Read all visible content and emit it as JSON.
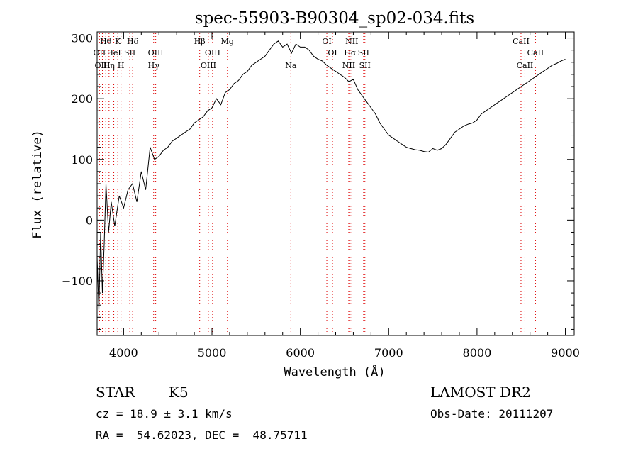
{
  "chart_data": {
    "type": "line",
    "title": "spec-55903-B90304_sp02-034.fits",
    "xlabel": "Wavelength (Å)",
    "ylabel": "Flux (relative)",
    "xlim": [
      3700,
      9100
    ],
    "ylim": [
      -190,
      310
    ],
    "x_ticks": [
      4000,
      5000,
      6000,
      7000,
      8000,
      9000
    ],
    "y_ticks": [
      -100,
      0,
      100,
      200,
      300
    ],
    "x_tick_labels": [
      "4000",
      "5000",
      "6000",
      "7000",
      "8000",
      "9000"
    ],
    "y_tick_labels": [
      "−100",
      "0",
      "100",
      "200",
      "300"
    ],
    "grid": false,
    "line_color": "#000000",
    "marker_color": "#dd0000",
    "series": [
      {
        "x": [
          3700,
          3720,
          3740,
          3760,
          3780,
          3800,
          3830,
          3860,
          3900,
          3950,
          4000,
          4050,
          4100,
          4150,
          4200,
          4250,
          4300,
          4350,
          4400,
          4450,
          4500,
          4550,
          4600,
          4650,
          4700,
          4750,
          4800,
          4850,
          4900,
          4950,
          5000,
          5050,
          5100,
          5150,
          5200,
          5250,
          5300,
          5350,
          5400,
          5450,
          5500,
          5550,
          5600,
          5650,
          5700,
          5750,
          5800,
          5850,
          5900,
          5950,
          6000,
          6050,
          6100,
          6150,
          6200,
          6250,
          6300,
          6350,
          6400,
          6450,
          6500,
          6550,
          6600,
          6650,
          6700,
          6750,
          6800,
          6850,
          6900,
          6950,
          7000,
          7050,
          7100,
          7150,
          7200,
          7250,
          7300,
          7350,
          7400,
          7450,
          7500,
          7550,
          7600,
          7650,
          7700,
          7750,
          7800,
          7850,
          7900,
          7950,
          8000,
          8050,
          8100,
          8150,
          8200,
          8250,
          8300,
          8350,
          8400,
          8450,
          8500,
          8550,
          8600,
          8650,
          8700,
          8750,
          8800,
          8850,
          8900,
          8950,
          9000
        ],
        "y": [
          -60,
          -150,
          -20,
          -120,
          -40,
          60,
          -20,
          30,
          -10,
          40,
          20,
          50,
          60,
          30,
          80,
          50,
          120,
          100,
          105,
          115,
          120,
          130,
          135,
          140,
          145,
          150,
          160,
          165,
          170,
          180,
          185,
          200,
          190,
          210,
          215,
          225,
          230,
          240,
          245,
          255,
          260,
          265,
          270,
          280,
          290,
          295,
          285,
          290,
          275,
          290,
          285,
          285,
          280,
          270,
          265,
          262,
          255,
          250,
          245,
          240,
          235,
          228,
          232,
          215,
          205,
          195,
          185,
          175,
          160,
          150,
          140,
          135,
          130,
          125,
          120,
          118,
          116,
          115,
          113,
          112,
          118,
          115,
          118,
          125,
          135,
          145,
          150,
          155,
          158,
          160,
          165,
          175,
          180,
          185,
          190,
          195,
          200,
          205,
          210,
          215,
          220,
          225,
          230,
          235,
          240,
          245,
          250,
          255,
          258,
          262,
          265
        ]
      }
    ],
    "lines": [
      {
        "label": "Hθ",
        "x": 3798,
        "row": 1
      },
      {
        "label": "OII",
        "x": 3727,
        "row": 2
      },
      {
        "label": "OIII",
        "x": 3760,
        "row": 3
      },
      {
        "label": "K",
        "x": 3934,
        "row": 1
      },
      {
        "label": "HeI",
        "x": 3889,
        "row": 2
      },
      {
        "label": "Hη",
        "x": 3835,
        "row": 3
      },
      {
        "label": "SII",
        "x": 4070,
        "row": 2
      },
      {
        "label": "H",
        "x": 3970,
        "row": 3
      },
      {
        "label": "Hδ",
        "x": 4102,
        "row": 1
      },
      {
        "label": "OIII",
        "x": 4363,
        "row": 2
      },
      {
        "label": "Hγ",
        "x": 4340,
        "row": 3
      },
      {
        "label": "Hβ",
        "x": 4861,
        "row": 1
      },
      {
        "label": "OIII",
        "x": 5007,
        "row": 2
      },
      {
        "label": "OIII",
        "x": 4959,
        "row": 3
      },
      {
        "label": "Mg",
        "x": 5175,
        "row": 1
      },
      {
        "label": "Na",
        "x": 5893,
        "row": 3
      },
      {
        "label": "OI",
        "x": 6300,
        "row": 1
      },
      {
        "label": "OI",
        "x": 6364,
        "row": 2
      },
      {
        "label": "NII",
        "x": 6583,
        "row": 1
      },
      {
        "label": "Hα",
        "x": 6563,
        "row": 2
      },
      {
        "label": "SII",
        "x": 6716,
        "row": 2
      },
      {
        "label": "NII",
        "x": 6548,
        "row": 3
      },
      {
        "label": "SII",
        "x": 6731,
        "row": 3
      },
      {
        "label": "CaII",
        "x": 8498,
        "row": 1
      },
      {
        "label": "CaII",
        "x": 8662,
        "row": 2
      },
      {
        "label": "CaII",
        "x": 8542,
        "row": 3
      }
    ]
  },
  "info": {
    "object_class": "STAR",
    "subclass": "K5",
    "redshift_line": "cz = 18.9 ± 3.1 km/s",
    "coords_line": "RA =  54.62023, DEC =  48.75711",
    "survey": "LAMOST DR2",
    "obs_date_line": "Obs-Date: 20111207"
  }
}
